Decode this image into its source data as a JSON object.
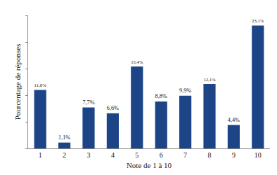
{
  "chart_data": {
    "type": "bar",
    "x_label": "Note de 1 à 10",
    "y_label": "Pourcentage de réponses",
    "categories": [
      "1",
      "2",
      "3",
      "4",
      "5",
      "6",
      "7",
      "8",
      "9",
      "10"
    ],
    "values": [
      11.0,
      1.1,
      7.7,
      6.6,
      15.4,
      8.8,
      9.9,
      12.1,
      4.4,
      23.1
    ],
    "value_labels": [
      "11,0%",
      "1,1%",
      "7,7%",
      "6,6%",
      "15,4%",
      "8,8%",
      "9,9%",
      "12,1%",
      "4,4%",
      "23,1%"
    ],
    "color": "#1c4587",
    "ylim": [
      0,
      25
    ],
    "yticks": [
      0,
      5,
      10,
      15,
      20,
      25
    ],
    "grid": false,
    "data_labels": true,
    "tick_labels": "x"
  }
}
